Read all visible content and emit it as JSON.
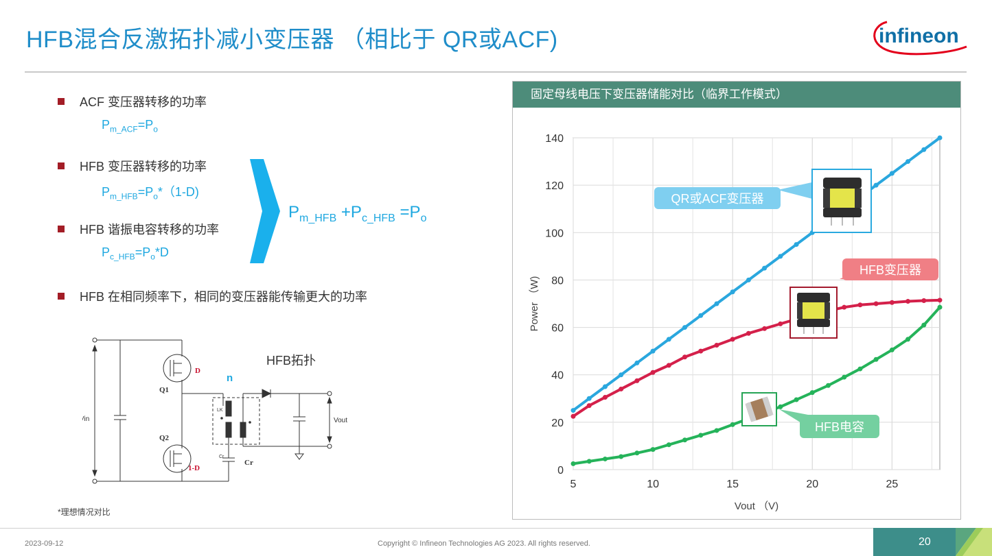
{
  "slide": {
    "title": "HFB混合反激拓扑减小变压器 （相比于 QR或ACF)",
    "logo_text": "infineon",
    "bullets": [
      {
        "text": "ACF 变压器转移的功率"
      },
      {
        "text": "HFB 变压器转移的功率"
      },
      {
        "text": "HFB 谐振电容转移的功率"
      },
      {
        "text": "HFB 在相同频率下，相同的变压器能传输更大的功率"
      }
    ],
    "formula_acf": {
      "p": "P",
      "sub": "m_ACF",
      "eq": "=P",
      "sub2": "o"
    },
    "formula_hfb": {
      "p": "P",
      "sub": "m_HFB",
      "eq": "=P",
      "sub2": "o",
      "rest": "*（1-D)"
    },
    "formula_cap": {
      "p": "P",
      "sub": "c_HFB",
      "eq": "=P",
      "sub2": "o",
      "rest": "*D"
    },
    "sum_formula": {
      "p1": "P",
      "s1": "m_HFB",
      "plus": " +P",
      "s2": "c_HFB",
      "eq": " =P",
      "s3": "o"
    },
    "topology_label": "HFB拓扑",
    "circuit": {
      "vin": "Vin",
      "vout": "Vout",
      "q1": "Q1",
      "q2": "Q2",
      "d": "D",
      "one_minus_d": "1-D",
      "n": "n",
      "lk": "LK",
      "cr_small": "Cr",
      "cr": "Cr"
    },
    "footnote": "*理想情况对比",
    "footer_date": "2023-09-12",
    "footer_copyright": "Copyright © Infineon Technologies AG 2023. All rights reserved.",
    "page_number": "20"
  },
  "panel": {
    "header": "固定母线电压下变压器储能对比（临界工作模式）",
    "callout_qr": "QR或ACF变压器",
    "callout_hfb": "HFB变压器",
    "callout_cap": "HFB电容"
  },
  "colors": {
    "accent_blue": "#1f8dc9",
    "formula_blue": "#1fa8e0",
    "bullet_red": "#a31d26",
    "header_green": "#4d8c7a",
    "series_blue": "#2aa7de",
    "series_red": "#d4204a",
    "series_green": "#25b35a",
    "callout_blue": "#7fcff0",
    "callout_red": "#f07f85",
    "callout_green": "#74d0a0"
  },
  "chart_data": {
    "type": "line",
    "xlabel": "Vout （V)",
    "ylabel": "Power （W)",
    "xlim": [
      5,
      28
    ],
    "ylim": [
      0,
      140
    ],
    "xticks": [
      5,
      10,
      15,
      20,
      25
    ],
    "yticks": [
      0,
      20,
      40,
      60,
      80,
      100,
      120,
      140
    ],
    "grid": true,
    "x": [
      5,
      6,
      7,
      8,
      9,
      10,
      11,
      12,
      13,
      14,
      15,
      16,
      17,
      18,
      19,
      20,
      21,
      22,
      23,
      24,
      25,
      26,
      27,
      28
    ],
    "series": [
      {
        "values": [
          25,
          30,
          35,
          40,
          45,
          50,
          55,
          60,
          65,
          70,
          75,
          80,
          85,
          90,
          95,
          100,
          105,
          110,
          115,
          120,
          125,
          130,
          135,
          140
        ]
      },
      {
        "values": [
          22.5,
          27,
          30.5,
          34,
          37.5,
          41,
          44,
          47.5,
          50,
          52.5,
          55,
          57.5,
          59.5,
          61.5,
          63.5,
          65.5,
          67,
          68.5,
          69.5,
          70,
          70.5,
          71,
          71.3,
          71.5
        ]
      },
      {
        "values": [
          2.5,
          3.5,
          4.5,
          5.5,
          7,
          8.5,
          10.5,
          12.5,
          14.5,
          16.5,
          19,
          21.5,
          24,
          26.5,
          29.5,
          32.5,
          35.5,
          39,
          42.5,
          46.5,
          50.5,
          55,
          61,
          68.5
        ]
      }
    ]
  }
}
